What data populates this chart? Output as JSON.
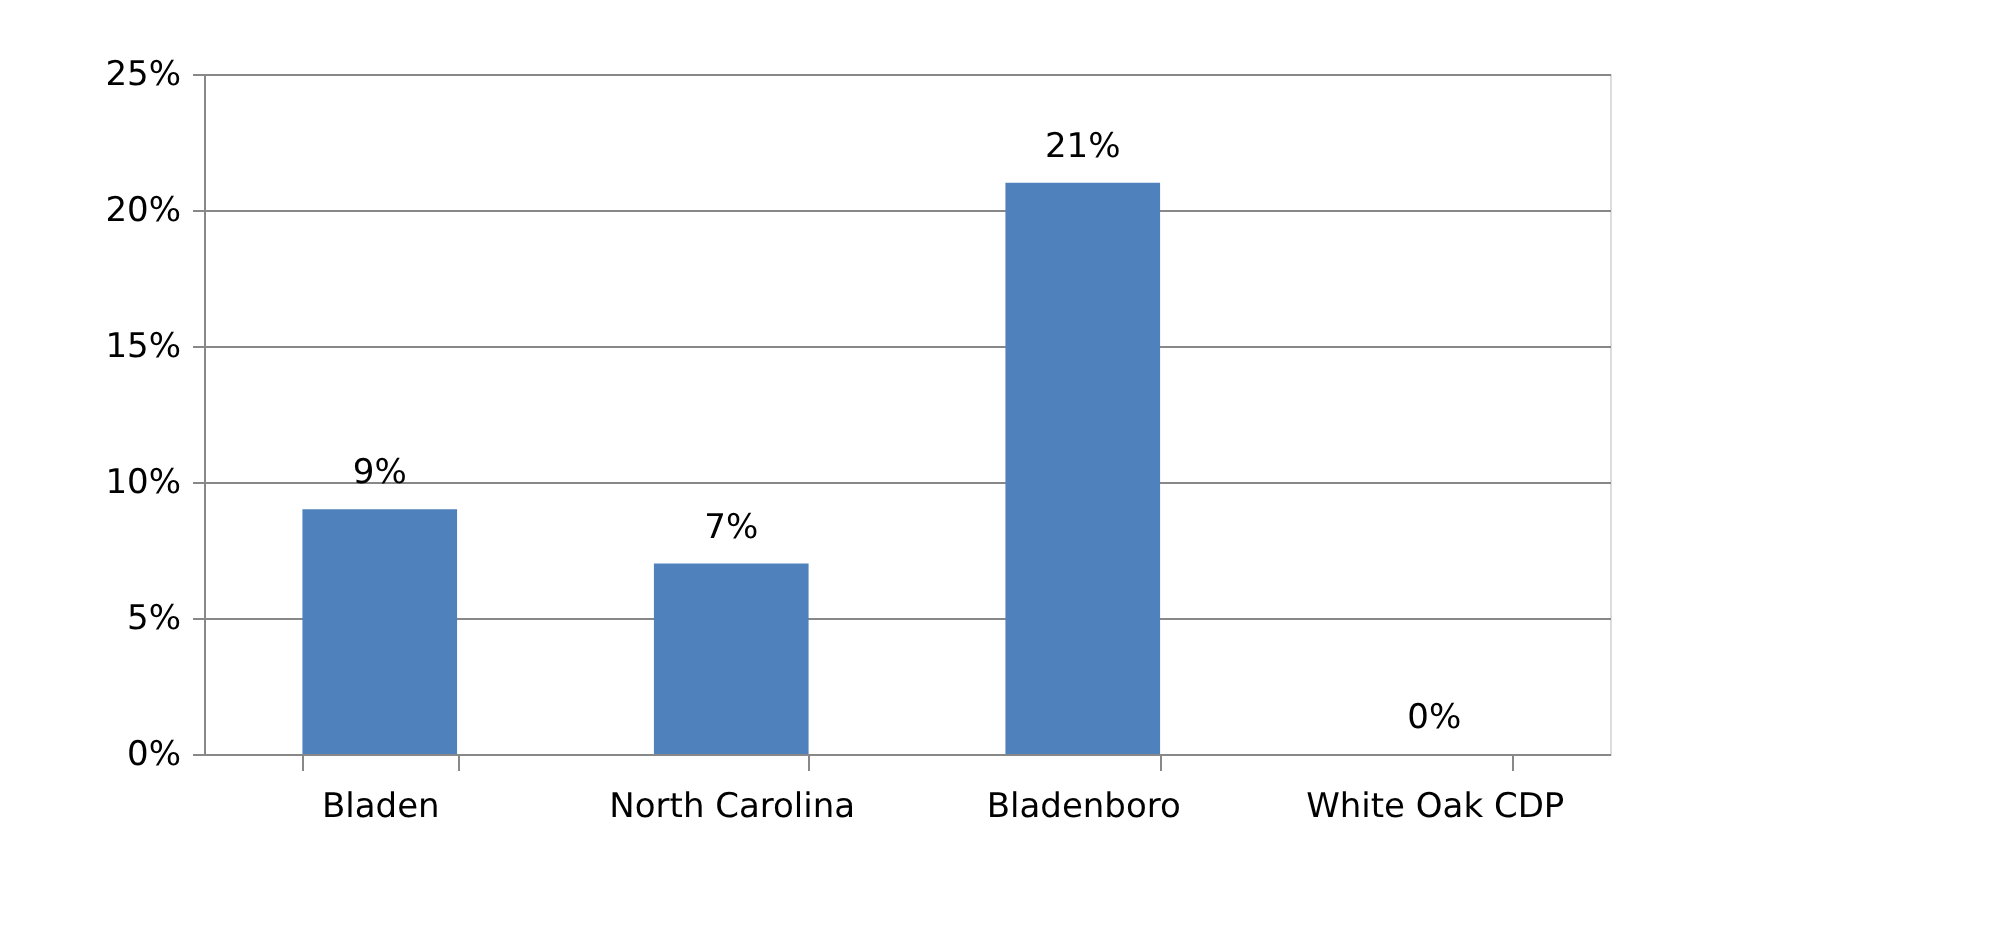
{
  "chart_data": {
    "type": "bar",
    "categories": [
      "Bladen",
      "North Carolina",
      "Bladenboro",
      "White Oak CDP"
    ],
    "values": [
      9,
      7,
      21,
      0
    ],
    "color": "#4f81bd",
    "value_labels": [
      "9%",
      "7%",
      "21%",
      "0%"
    ],
    "ylim": [
      0,
      25
    ],
    "yticks": [
      {
        "value": 0,
        "label": "0%"
      },
      {
        "value": 5,
        "label": "5%"
      },
      {
        "value": 10,
        "label": "10%"
      },
      {
        "value": 15,
        "label": "15%"
      },
      {
        "value": 20,
        "label": "20%"
      },
      {
        "value": 25,
        "label": "25%"
      }
    ],
    "grid": "y"
  }
}
